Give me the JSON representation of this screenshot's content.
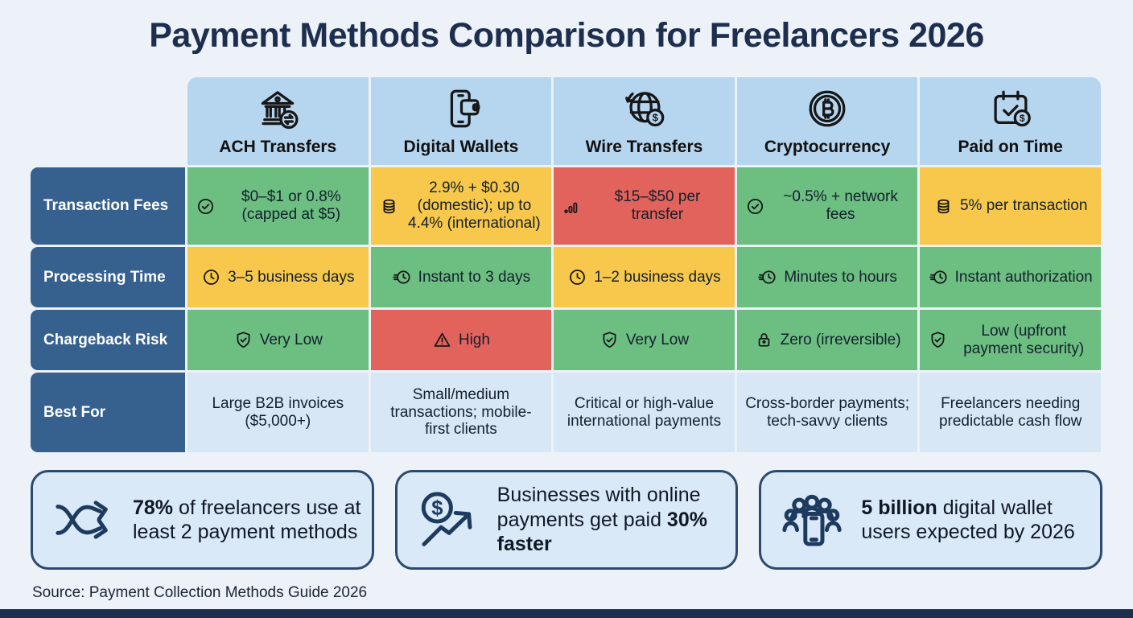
{
  "title": "Payment Methods Comparison for Freelancers 2026",
  "source": "Source: Payment Collection Methods Guide 2026",
  "colors": {
    "background": "#edf2f9",
    "navy": "#1d2e4e",
    "header_blue": "#b6d5ef",
    "row_label_blue": "#36618f",
    "positive_green": "#6cbe81",
    "caution_yellow": "#f7c84b",
    "negative_red": "#e2635c",
    "light_blue_cell": "#d7e7f6",
    "card_fill": "#dae9f7",
    "card_border": "#2c4a6d"
  },
  "table": {
    "columns": [
      {
        "label": "ACH Transfers",
        "icon": "bank-transfer-icon"
      },
      {
        "label": "Digital Wallets",
        "icon": "phone-wallet-icon"
      },
      {
        "label": "Wire Transfers",
        "icon": "globe-dollar-icon"
      },
      {
        "label": "Cryptocurrency",
        "icon": "bitcoin-icon"
      },
      {
        "label": "Paid on Time",
        "icon": "calendar-check-dollar-icon"
      }
    ],
    "rows": [
      {
        "label": "Transaction Fees",
        "cells": [
          {
            "text": "$0–$1 or 0.8% (capped at $5)",
            "color": "green",
            "icon": "check-circle-icon"
          },
          {
            "text": "2.9% + $0.30 (domestic); up to 4.4% (international)",
            "color": "yellow",
            "icon": "coins-icon"
          },
          {
            "text": "$15–$50 per transfer",
            "color": "red",
            "icon": "bar-chart-icon"
          },
          {
            "text": "~0.5% + network fees",
            "color": "green",
            "icon": "check-circle-icon"
          },
          {
            "text": "5% per transaction",
            "color": "yellow",
            "icon": "coins-icon"
          }
        ]
      },
      {
        "label": "Processing Time",
        "cells": [
          {
            "text": "3–5 business days",
            "color": "yellow",
            "icon": "clock-icon"
          },
          {
            "text": "Instant to 3 days",
            "color": "green",
            "icon": "clock-fast-icon"
          },
          {
            "text": "1–2 business days",
            "color": "yellow",
            "icon": "clock-icon"
          },
          {
            "text": "Minutes to hours",
            "color": "green",
            "icon": "clock-fast-icon"
          },
          {
            "text": "Instant authorization",
            "color": "green",
            "icon": "clock-fast-icon"
          }
        ]
      },
      {
        "label": "Chargeback Risk",
        "cells": [
          {
            "text": "Very Low",
            "color": "green",
            "icon": "shield-check-icon"
          },
          {
            "text": "High",
            "color": "red",
            "icon": "warning-triangle-icon"
          },
          {
            "text": "Very Low",
            "color": "green",
            "icon": "shield-check-icon"
          },
          {
            "text": "Zero (irreversible)",
            "color": "green",
            "icon": "lock-icon"
          },
          {
            "text": "Low (upfront payment security)",
            "color": "green",
            "icon": "shield-check-icon"
          }
        ]
      },
      {
        "label": "Best For",
        "cells": [
          {
            "text": "Large B2B invoices ($5,000+)",
            "color": "blue",
            "icon": null
          },
          {
            "text": "Small/medium transactions; mobile-first clients",
            "color": "blue",
            "icon": null
          },
          {
            "text": "Critical or high-value international payments",
            "color": "blue",
            "icon": null
          },
          {
            "text": "Cross-border payments; tech-savvy clients",
            "color": "blue",
            "icon": null
          },
          {
            "text": "Freelancers needing predictable cash flow",
            "color": "blue",
            "icon": null
          }
        ]
      }
    ]
  },
  "stats": [
    {
      "icon": "split-arrows-icon",
      "segments": [
        {
          "text": "78%",
          "bold": true
        },
        {
          "text": " of freelancers use at least 2 payment methods",
          "bold": false
        }
      ]
    },
    {
      "icon": "dollar-growth-icon",
      "segments": [
        {
          "text": "Businesses with online payments get paid ",
          "bold": false
        },
        {
          "text": "30% faster",
          "bold": true
        }
      ]
    },
    {
      "icon": "crowd-phone-icon",
      "segments": [
        {
          "text": "5 billion",
          "bold": true
        },
        {
          "text": " digital wallet users expected by 2026",
          "bold": false
        }
      ]
    }
  ],
  "chart_data": {
    "type": "table",
    "title": "Payment Methods Comparison for Freelancers 2026",
    "columns": [
      "ACH Transfers",
      "Digital Wallets",
      "Wire Transfers",
      "Cryptocurrency",
      "Paid on Time"
    ],
    "rows": [
      {
        "label": "Transaction Fees",
        "values": [
          "$0–$1 or 0.8% (capped at $5)",
          "2.9% + $0.30 (domestic); up to 4.4% (international)",
          "$15–$50 per transfer",
          "~0.5% + network fees",
          "5% per transaction"
        ],
        "ratings": [
          "good",
          "caution",
          "bad",
          "good",
          "caution"
        ]
      },
      {
        "label": "Processing Time",
        "values": [
          "3–5 business days",
          "Instant to 3 days",
          "1–2 business days",
          "Minutes to hours",
          "Instant authorization"
        ],
        "ratings": [
          "caution",
          "good",
          "caution",
          "good",
          "good"
        ]
      },
      {
        "label": "Chargeback Risk",
        "values": [
          "Very Low",
          "High",
          "Very Low",
          "Zero (irreversible)",
          "Low (upfront payment security)"
        ],
        "ratings": [
          "good",
          "bad",
          "good",
          "good",
          "good"
        ]
      },
      {
        "label": "Best For",
        "values": [
          "Large B2B invoices ($5,000+)",
          "Small/medium transactions; mobile-first clients",
          "Critical or high-value international payments",
          "Cross-border payments; tech-savvy clients",
          "Freelancers needing predictable cash flow"
        ],
        "ratings": [
          "neutral",
          "neutral",
          "neutral",
          "neutral",
          "neutral"
        ]
      }
    ],
    "footnotes": [
      "78% of freelancers use at least 2 payment methods",
      "Businesses with online payments get paid 30% faster",
      "5 billion digital wallet users expected by 2026"
    ]
  }
}
